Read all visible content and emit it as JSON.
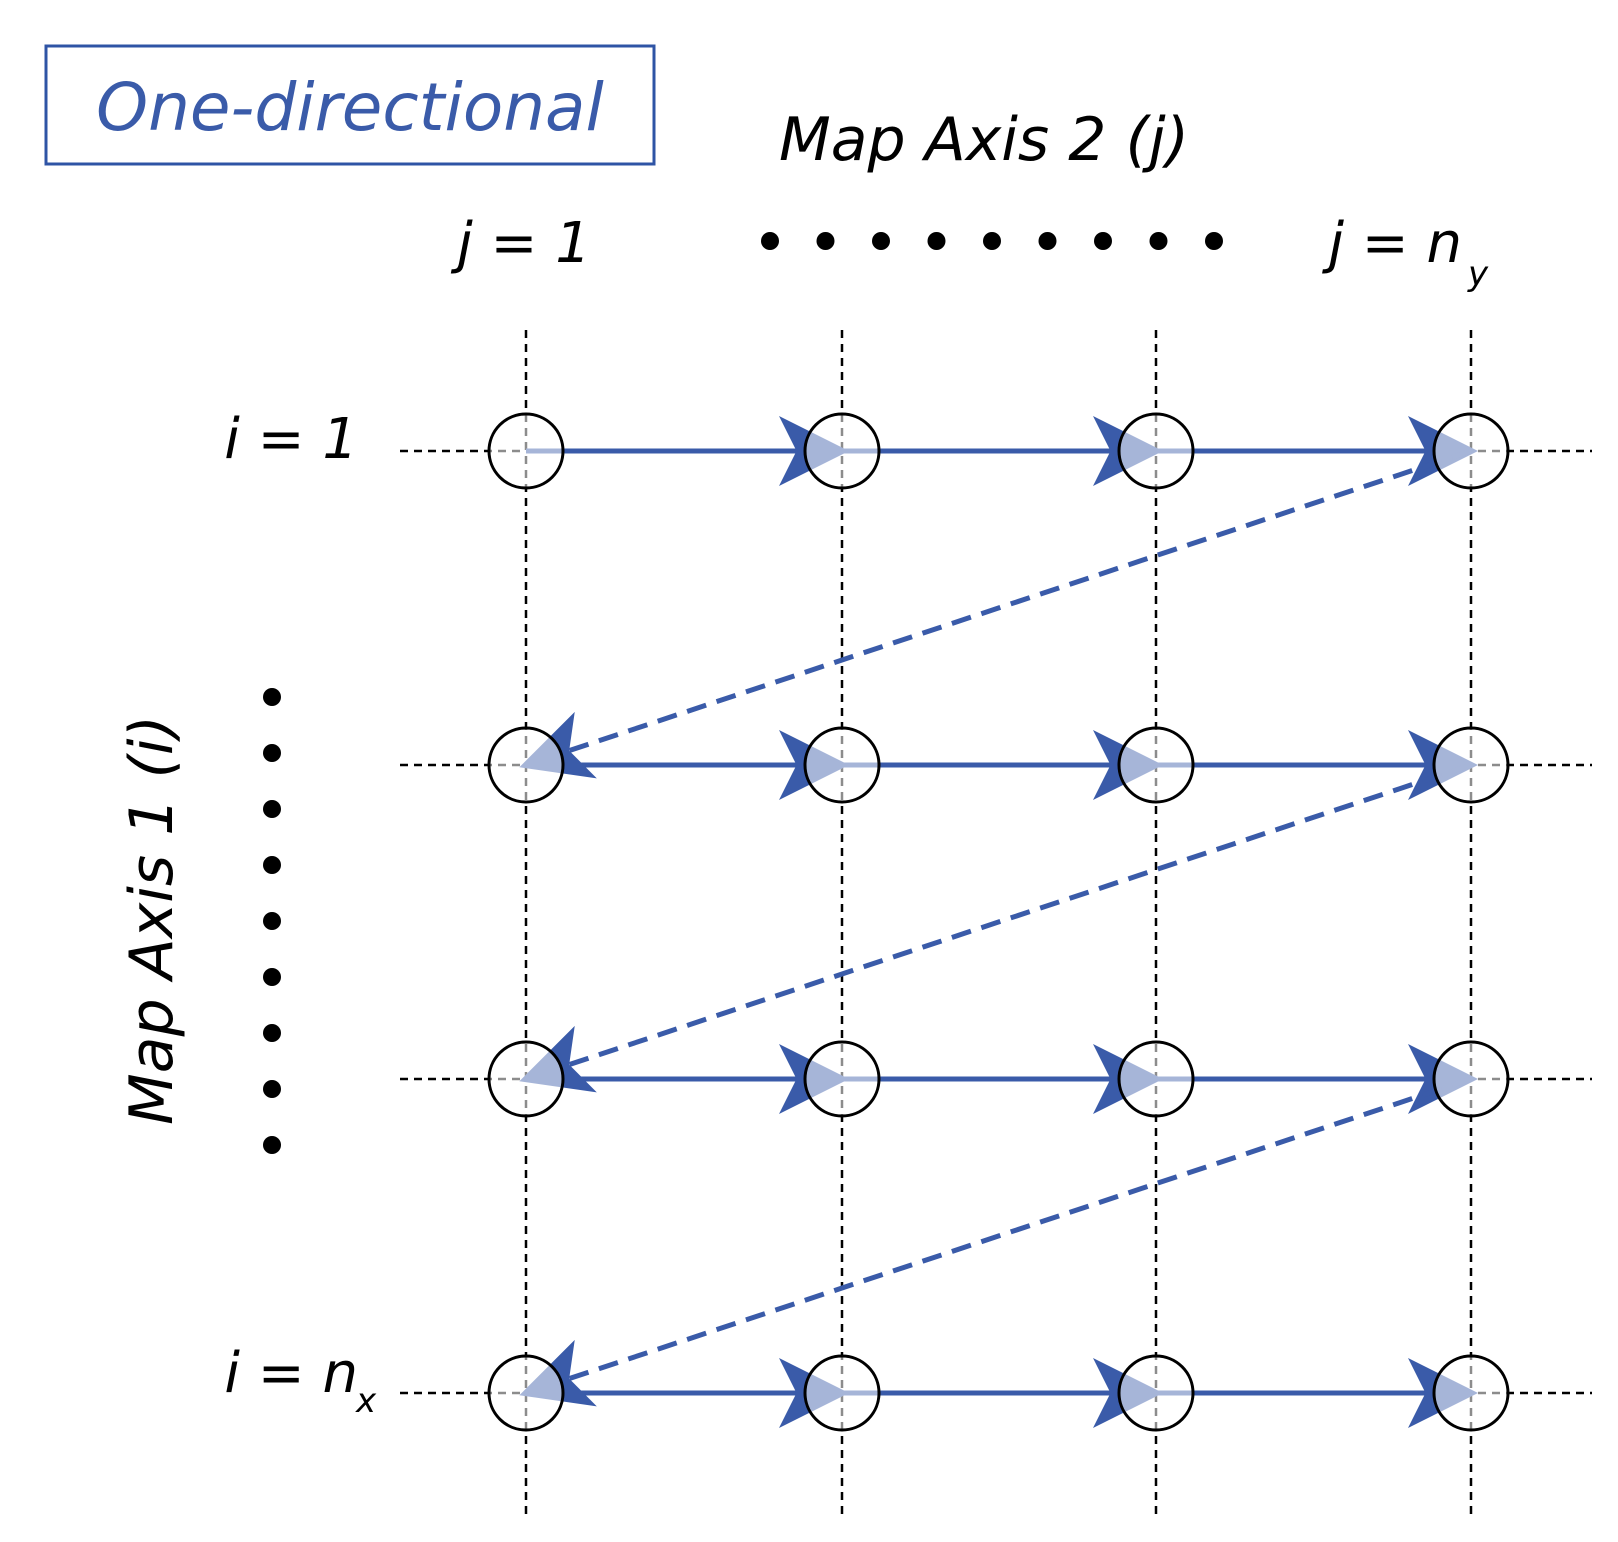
{
  "title": {
    "text": "One-directional",
    "color": "#3a5ba9"
  },
  "axis2": {
    "label": "Map Axis 2 (j)",
    "start_label": "j = 1",
    "end_label_main": "j = n",
    "end_label_sub": "y"
  },
  "axis1": {
    "label": "Map Axis 1 (i)",
    "start_label": "i = 1",
    "end_label_main": "i = n",
    "end_label_sub": "x"
  },
  "grid": {
    "rows": 4,
    "cols": 4
  },
  "colors": {
    "arrow": "#3a5ba9",
    "grid_line": "#000000",
    "node_stroke": "#000000",
    "node_fill": "#ffffff"
  },
  "icons": {
    "node": "circle-node",
    "arrowhead": "triangle-arrowhead",
    "ellipsis": "dot"
  }
}
